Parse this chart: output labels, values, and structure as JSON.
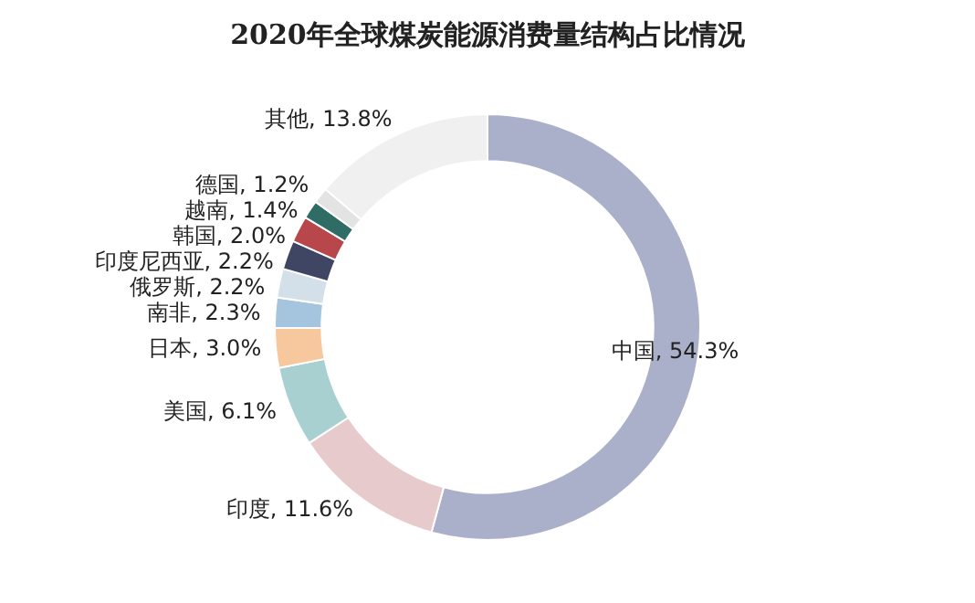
{
  "chart_data": {
    "type": "donut",
    "title": "2020年全球煤炭能源消费量结构占比情况",
    "categories": [
      "中国",
      "印度",
      "美国",
      "日本",
      "南非",
      "俄罗斯",
      "印度尼西亚",
      "韩国",
      "越南",
      "德国",
      "其他"
    ],
    "values": [
      54.3,
      11.6,
      6.1,
      3.0,
      2.3,
      2.2,
      2.2,
      2.0,
      1.4,
      1.2,
      13.8
    ],
    "value_labels": [
      "54.3%",
      "11.6%",
      "6.1%",
      "3.0%",
      "2.3%",
      "2.2%",
      "2.2%",
      "2.0%",
      "1.4%",
      "1.2%",
      "13.8%"
    ],
    "colors": [
      "#aab0c9",
      "#e6cacc",
      "#a9d0d1",
      "#f7c79d",
      "#a4c5dd",
      "#d3e0e9",
      "#3e4664",
      "#b8474b",
      "#2f6c65",
      "#e3e3e3",
      "#f0f0f0"
    ],
    "legend": false
  }
}
